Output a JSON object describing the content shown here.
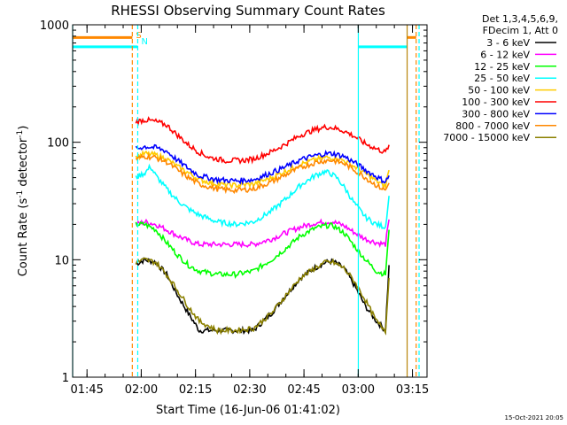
{
  "chart_data": {
    "type": "line",
    "title": "RHESSI Observing Summary Count Rates",
    "xlabel": "Start Time (16-Jun-06 01:41:02)",
    "ylabel": "Count Rate (s",
    "ylabel_sup1": "-1",
    "ylabel_mid": " detector",
    "ylabel_sup2": "-1",
    "ylabel_end": ")",
    "x_unit": "minutes since 01:41:02",
    "xlim": [
      0,
      98
    ],
    "ylim": [
      1,
      1000
    ],
    "yscale": "log",
    "grid": false,
    "legend_position": "right-outside",
    "x_ticks": [
      {
        "value": 3.97,
        "label": "01:45"
      },
      {
        "value": 18.97,
        "label": "02:00"
      },
      {
        "value": 33.97,
        "label": "02:15"
      },
      {
        "value": 48.97,
        "label": "02:30"
      },
      {
        "value": 63.97,
        "label": "02:45"
      },
      {
        "value": 78.97,
        "label": "03:00"
      },
      {
        "value": 93.97,
        "label": "03:15"
      }
    ],
    "y_ticks": [
      {
        "value": 1,
        "label": "1"
      },
      {
        "value": 10,
        "label": "10"
      },
      {
        "value": 100,
        "label": "100"
      },
      {
        "value": 1000,
        "label": "1000"
      }
    ],
    "legend_header": [
      "Det 1,3,4,5,6,9,",
      "FDecim 1, Att 0"
    ],
    "series": [
      {
        "name": "3 - 6 keV",
        "color": "#000000",
        "points": [
          [
            17.5,
            9.2
          ],
          [
            20,
            10
          ],
          [
            23,
            9.5
          ],
          [
            26,
            7.5
          ],
          [
            29,
            5
          ],
          [
            32,
            3.5
          ],
          [
            35,
            2.5
          ],
          [
            40,
            2.5
          ],
          [
            45,
            2.5
          ],
          [
            50,
            2.5
          ],
          [
            55,
            3.5
          ],
          [
            59,
            5
          ],
          [
            63,
            7
          ],
          [
            67,
            8.5
          ],
          [
            70,
            9.5
          ],
          [
            72,
            9.7
          ],
          [
            75,
            8.5
          ],
          [
            78,
            6
          ],
          [
            81,
            4
          ],
          [
            84,
            3
          ],
          [
            86.5,
            2.5
          ],
          [
            87.5,
            9
          ]
        ]
      },
      {
        "name": "6 - 12 keV",
        "color": "#ff00ff",
        "points": [
          [
            17.5,
            20
          ],
          [
            20,
            21
          ],
          [
            23,
            20
          ],
          [
            26,
            18
          ],
          [
            29,
            16
          ],
          [
            32,
            14.5
          ],
          [
            35,
            13.5
          ],
          [
            40,
            13.5
          ],
          [
            45,
            13.5
          ],
          [
            50,
            13.5
          ],
          [
            55,
            15
          ],
          [
            59,
            17
          ],
          [
            63,
            19
          ],
          [
            67,
            20.5
          ],
          [
            70,
            21
          ],
          [
            72,
            21
          ],
          [
            75,
            19.5
          ],
          [
            78,
            17
          ],
          [
            81,
            15
          ],
          [
            84,
            14
          ],
          [
            86.5,
            13.5
          ],
          [
            87.5,
            22
          ]
        ]
      },
      {
        "name": "12 - 25 keV",
        "color": "#00ff00",
        "points": [
          [
            17.5,
            20
          ],
          [
            20,
            20
          ],
          [
            23,
            18
          ],
          [
            26,
            14
          ],
          [
            29,
            11
          ],
          [
            32,
            9
          ],
          [
            35,
            8
          ],
          [
            40,
            7.5
          ],
          [
            45,
            7.5
          ],
          [
            50,
            8
          ],
          [
            55,
            10
          ],
          [
            59,
            12.5
          ],
          [
            63,
            16
          ],
          [
            67,
            18.5
          ],
          [
            70,
            19.5
          ],
          [
            72,
            19.5
          ],
          [
            75,
            17
          ],
          [
            78,
            13
          ],
          [
            81,
            10
          ],
          [
            84,
            8
          ],
          [
            86.5,
            7.5
          ],
          [
            87.5,
            18
          ]
        ]
      },
      {
        "name": "25 - 50 keV",
        "color": "#00ffff",
        "points": [
          [
            17.5,
            50
          ],
          [
            20,
            55
          ],
          [
            21.5,
            62
          ],
          [
            23,
            52
          ],
          [
            26,
            40
          ],
          [
            29,
            32
          ],
          [
            32,
            27
          ],
          [
            35,
            24
          ],
          [
            40,
            21
          ],
          [
            45,
            20
          ],
          [
            50,
            21
          ],
          [
            55,
            26
          ],
          [
            59,
            33
          ],
          [
            63,
            43
          ],
          [
            67,
            52
          ],
          [
            69.5,
            56
          ],
          [
            71,
            55
          ],
          [
            73,
            50
          ],
          [
            75,
            42
          ],
          [
            78,
            30
          ],
          [
            81,
            23
          ],
          [
            84,
            20
          ],
          [
            86.5,
            19
          ],
          [
            87.5,
            35
          ]
        ]
      },
      {
        "name": "50 - 100 keV",
        "color": "#ffcc00",
        "points": [
          [
            17.5,
            75
          ],
          [
            20,
            80
          ],
          [
            23,
            78
          ],
          [
            26,
            72
          ],
          [
            29,
            62
          ],
          [
            32,
            55
          ],
          [
            35,
            48
          ],
          [
            40,
            44
          ],
          [
            45,
            43
          ],
          [
            50,
            44
          ],
          [
            55,
            50
          ],
          [
            59,
            57
          ],
          [
            63,
            65
          ],
          [
            67,
            71
          ],
          [
            70,
            74
          ],
          [
            72,
            74
          ],
          [
            75,
            70
          ],
          [
            78,
            62
          ],
          [
            81,
            54
          ],
          [
            84,
            47
          ],
          [
            86.5,
            42
          ],
          [
            87.5,
            58
          ]
        ]
      },
      {
        "name": "100 - 300 keV",
        "color": "#ff0000",
        "points": [
          [
            17.5,
            150
          ],
          [
            20,
            155
          ],
          [
            23,
            150
          ],
          [
            26,
            140
          ],
          [
            29,
            115
          ],
          [
            32,
            95
          ],
          [
            35,
            82
          ],
          [
            38,
            74
          ],
          [
            42,
            70
          ],
          [
            47,
            70
          ],
          [
            50,
            72
          ],
          [
            55,
            83
          ],
          [
            59,
            97
          ],
          [
            63,
            115
          ],
          [
            67,
            128
          ],
          [
            70,
            135
          ],
          [
            72,
            133
          ],
          [
            75,
            125
          ],
          [
            78,
            112
          ],
          [
            81,
            97
          ],
          [
            84,
            88
          ],
          [
            86.5,
            82
          ],
          [
            87.5,
            95
          ]
        ]
      },
      {
        "name": "300 - 800 keV",
        "color": "#0000ff",
        "points": [
          [
            17.5,
            88
          ],
          [
            20,
            92
          ],
          [
            23,
            90
          ],
          [
            26,
            84
          ],
          [
            29,
            70
          ],
          [
            32,
            60
          ],
          [
            35,
            52
          ],
          [
            40,
            48
          ],
          [
            45,
            47
          ],
          [
            50,
            48
          ],
          [
            55,
            55
          ],
          [
            59,
            62
          ],
          [
            63,
            71
          ],
          [
            67,
            77
          ],
          [
            70,
            80
          ],
          [
            72,
            80
          ],
          [
            75,
            76
          ],
          [
            78,
            67
          ],
          [
            81,
            58
          ],
          [
            84,
            51
          ],
          [
            86.5,
            46
          ],
          [
            87.5,
            52
          ]
        ]
      },
      {
        "name": "800 - 7000 keV",
        "color": "#ff8800",
        "points": [
          [
            17.5,
            72
          ],
          [
            20,
            76
          ],
          [
            23,
            74
          ],
          [
            26,
            68
          ],
          [
            29,
            58
          ],
          [
            32,
            50
          ],
          [
            35,
            44
          ],
          [
            40,
            40
          ],
          [
            45,
            39
          ],
          [
            50,
            40
          ],
          [
            55,
            46
          ],
          [
            59,
            53
          ],
          [
            63,
            61
          ],
          [
            67,
            67
          ],
          [
            70,
            70
          ],
          [
            72,
            70
          ],
          [
            75,
            66
          ],
          [
            78,
            58
          ],
          [
            81,
            50
          ],
          [
            84,
            43
          ],
          [
            86.5,
            39
          ],
          [
            87.5,
            45
          ]
        ]
      },
      {
        "name": "7000 - 15000 keV",
        "color": "#8b8000",
        "points": [
          [
            17.5,
            9.5
          ],
          [
            20,
            10
          ],
          [
            23,
            9.5
          ],
          [
            26,
            7.5
          ],
          [
            29,
            5.5
          ],
          [
            32,
            4
          ],
          [
            35,
            3
          ],
          [
            40,
            2.5
          ],
          [
            45,
            2.5
          ],
          [
            50,
            2.6
          ],
          [
            55,
            3.5
          ],
          [
            59,
            5
          ],
          [
            63,
            7
          ],
          [
            67,
            8.5
          ],
          [
            70,
            9.5
          ],
          [
            72,
            9.5
          ],
          [
            75,
            8.5
          ],
          [
            78,
            6.5
          ],
          [
            81,
            4.5
          ],
          [
            84,
            3
          ],
          [
            86.5,
            2.5
          ],
          [
            87.5,
            7
          ]
        ]
      }
    ],
    "attenuator_lines": [
      {
        "color": "#ff8800",
        "level": 780,
        "spans": [
          [
            0,
            16.5
          ],
          [
            92.5,
            95
          ]
        ]
      },
      {
        "color": "#00ffff",
        "level": 650,
        "spans": [
          [
            0,
            18
          ],
          [
            79,
            92.5
          ]
        ]
      }
    ],
    "vertical_markers": [
      {
        "x": 0,
        "color": "#00ffff",
        "style": "solid"
      },
      {
        "x": 16.5,
        "color": "#ff8800",
        "style": "dashed",
        "label": "S",
        "label_color": "#ff8800"
      },
      {
        "x": 18,
        "color": "#00ffff",
        "style": "dashed",
        "label": "N",
        "label_color": "#00ffff"
      },
      {
        "x": 79,
        "color": "#00ffff",
        "style": "solid"
      },
      {
        "x": 92.5,
        "color": "#b8860b",
        "style": "solid"
      },
      {
        "x": 95,
        "color": "#ff8800",
        "style": "dashed"
      },
      {
        "x": 95.8,
        "color": "#00ffff",
        "style": "dashed"
      }
    ]
  },
  "footer_date": "15-Oct-2021 20:05"
}
